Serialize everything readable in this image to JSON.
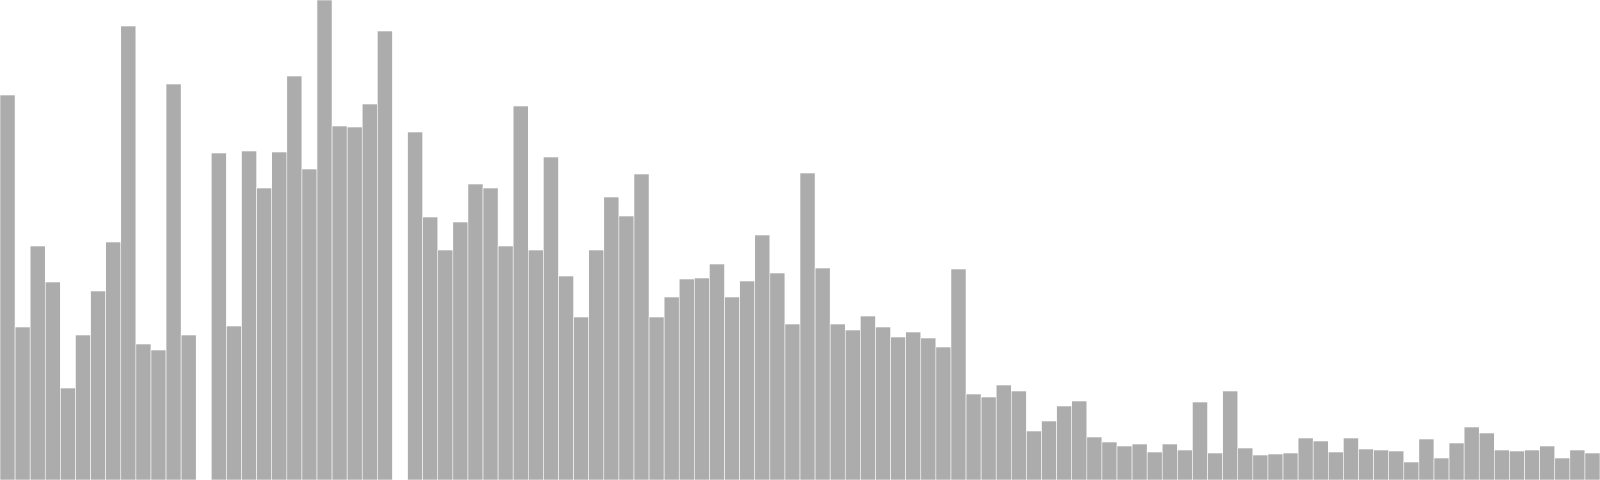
{
  "chart_data": {
    "type": "bar",
    "title": "",
    "xlabel": "",
    "ylabel": "",
    "grid": false,
    "legend": "none",
    "ylim": [
      0,
      480
    ],
    "colors": {
      "bar": "#acacac",
      "bar_edge": "#ffffff",
      "background": "#ffffff"
    },
    "values": [
      385,
      153,
      234,
      198,
      92,
      145,
      189,
      238,
      454,
      136,
      130,
      396,
      145,
      0,
      327,
      154,
      329,
      292,
      328,
      404,
      311,
      480,
      354,
      353,
      376,
      449,
      0,
      348,
      263,
      230,
      258,
      296,
      292,
      234,
      374,
      230,
      323,
      204,
      163,
      230,
      283,
      264,
      306,
      163,
      183,
      201,
      202,
      216,
      183,
      199,
      245,
      207,
      156,
      307,
      212,
      156,
      150,
      164,
      153,
      143,
      148,
      142,
      133,
      211,
      86,
      83,
      95,
      89,
      49,
      59,
      74,
      79,
      43,
      38,
      34,
      36,
      28,
      36,
      30,
      78,
      27,
      89,
      32,
      25,
      26,
      27,
      42,
      39,
      28,
      42,
      31,
      30,
      29,
      18,
      41,
      22,
      37,
      53,
      47,
      30,
      29,
      30,
      34,
      22,
      30,
      27
    ]
  }
}
